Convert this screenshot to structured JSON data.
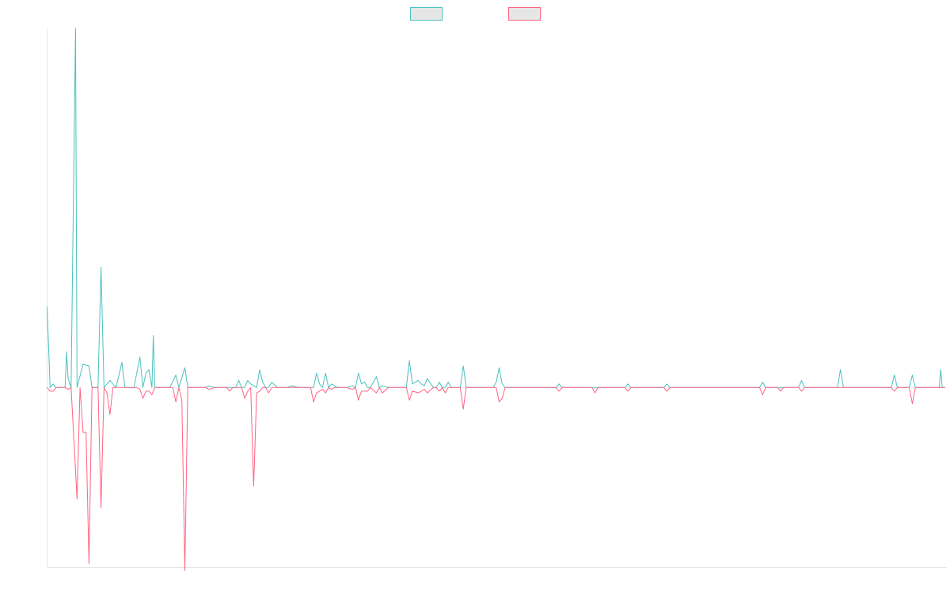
{
  "chart_data": {
    "type": "line",
    "title": "",
    "xlabel": "",
    "ylabel": "",
    "x_range": [
      0,
      300
    ],
    "ylim": [
      -100,
      200
    ],
    "grid": false,
    "legend_placement": "top-center",
    "series": [
      {
        "color": "#4bc0c0",
        "fill": "#e6e6e6",
        "points": [
          [
            0,
            45
          ],
          [
            1,
            0
          ],
          [
            2,
            2
          ],
          [
            3,
            0
          ],
          [
            5,
            0
          ],
          [
            6,
            0
          ],
          [
            6.5,
            20
          ],
          [
            7,
            5
          ],
          [
            8,
            0
          ],
          [
            9.5,
            200
          ],
          [
            10,
            0
          ],
          [
            12,
            13
          ],
          [
            14,
            12
          ],
          [
            15,
            0
          ],
          [
            17,
            0
          ],
          [
            18,
            67
          ],
          [
            19,
            0
          ],
          [
            20,
            2
          ],
          [
            21,
            4
          ],
          [
            23,
            0
          ],
          [
            25,
            14
          ],
          [
            26,
            0
          ],
          [
            29,
            0
          ],
          [
            31,
            17
          ],
          [
            32,
            0
          ],
          [
            33,
            8
          ],
          [
            34,
            10
          ],
          [
            35,
            0
          ],
          [
            35.5,
            29
          ],
          [
            36,
            0
          ],
          [
            38,
            0
          ],
          [
            39,
            0
          ],
          [
            41,
            0
          ],
          [
            43,
            7
          ],
          [
            44,
            0
          ],
          [
            46,
            11
          ],
          [
            47,
            0
          ],
          [
            53,
            0
          ],
          [
            54,
            1
          ],
          [
            56,
            0
          ],
          [
            60,
            0
          ],
          [
            63,
            0
          ],
          [
            64,
            4
          ],
          [
            65,
            0
          ],
          [
            66,
            0
          ],
          [
            67,
            4
          ],
          [
            68,
            2
          ],
          [
            70,
            0
          ],
          [
            71,
            10
          ],
          [
            72,
            3
          ],
          [
            73,
            0
          ],
          [
            74,
            0
          ],
          [
            75,
            3
          ],
          [
            77,
            0
          ],
          [
            80,
            0
          ],
          [
            82,
            1
          ],
          [
            84,
            0
          ],
          [
            88,
            0
          ],
          [
            89,
            0
          ],
          [
            90,
            8
          ],
          [
            91,
            2
          ],
          [
            92,
            0
          ],
          [
            93,
            8
          ],
          [
            94,
            0
          ],
          [
            95,
            2
          ],
          [
            96,
            1
          ],
          [
            97,
            0
          ],
          [
            98,
            0
          ],
          [
            100,
            0
          ],
          [
            102,
            1
          ],
          [
            103,
            0
          ],
          [
            104,
            8
          ],
          [
            105,
            2
          ],
          [
            106,
            3
          ],
          [
            107,
            0
          ],
          [
            108,
            0
          ],
          [
            110,
            6
          ],
          [
            111,
            0
          ],
          [
            112,
            1
          ],
          [
            114,
            0
          ],
          [
            120,
            0
          ],
          [
            121,
            15
          ],
          [
            122,
            2
          ],
          [
            124,
            4
          ],
          [
            125,
            2
          ],
          [
            126,
            1
          ],
          [
            127,
            5
          ],
          [
            129,
            0
          ],
          [
            130,
            0
          ],
          [
            131,
            3
          ],
          [
            132,
            0
          ],
          [
            133,
            0
          ],
          [
            134,
            3
          ],
          [
            135,
            0
          ],
          [
            137,
            0
          ],
          [
            138,
            0
          ],
          [
            139,
            12
          ],
          [
            140,
            0
          ],
          [
            141,
            0
          ],
          [
            143,
            0
          ],
          [
            146,
            0
          ],
          [
            148,
            0
          ],
          [
            149,
            0
          ],
          [
            150,
            3
          ],
          [
            151,
            11
          ],
          [
            152,
            2
          ],
          [
            153,
            0
          ],
          [
            160,
            0
          ],
          [
            161,
            0
          ],
          [
            168,
            0
          ],
          [
            170,
            0
          ],
          [
            171,
            2
          ],
          [
            172,
            0
          ],
          [
            175,
            0
          ],
          [
            176,
            0
          ],
          [
            178,
            0
          ],
          [
            186,
            0
          ],
          [
            187,
            0
          ],
          [
            193,
            0
          ],
          [
            194,
            2
          ],
          [
            195,
            0
          ],
          [
            200,
            0
          ],
          [
            206,
            0
          ],
          [
            207,
            2
          ],
          [
            208,
            0
          ],
          [
            212,
            0
          ],
          [
            213,
            0
          ],
          [
            216,
            0
          ],
          [
            217,
            0
          ],
          [
            218,
            0
          ],
          [
            220,
            0
          ],
          [
            222,
            0
          ],
          [
            223,
            0
          ],
          [
            225,
            0
          ],
          [
            232,
            0
          ],
          [
            234,
            0
          ],
          [
            238,
            0
          ],
          [
            239,
            3
          ],
          [
            240,
            0
          ],
          [
            244,
            0
          ],
          [
            246,
            0
          ],
          [
            248,
            0
          ],
          [
            251,
            0
          ],
          [
            252,
            4
          ],
          [
            253,
            0
          ],
          [
            258,
            0
          ],
          [
            260,
            0
          ],
          [
            264,
            0
          ],
          [
            265,
            10
          ],
          [
            266,
            0
          ],
          [
            282,
            0
          ],
          [
            283,
            7
          ],
          [
            284,
            0
          ],
          [
            288,
            0
          ],
          [
            289,
            7
          ],
          [
            290,
            0
          ],
          [
            294,
            0
          ],
          [
            296,
            0
          ],
          [
            297,
            0
          ],
          [
            298,
            0
          ],
          [
            298.5,
            10
          ],
          [
            299,
            0
          ],
          [
            300,
            0
          ]
        ]
      },
      {
        "color": "#ff6384",
        "fill": "#e6e6e6",
        "points": [
          [
            0,
            0
          ],
          [
            1,
            -2
          ],
          [
            2,
            -2
          ],
          [
            3,
            0
          ],
          [
            5,
            0
          ],
          [
            6,
            0
          ],
          [
            7,
            -1
          ],
          [
            8,
            0
          ],
          [
            10,
            -62
          ],
          [
            11,
            0
          ],
          [
            12,
            -25
          ],
          [
            13,
            -25
          ],
          [
            14,
            -98
          ],
          [
            15,
            0
          ],
          [
            17,
            0
          ],
          [
            18,
            -67
          ],
          [
            19,
            0
          ],
          [
            20,
            -3
          ],
          [
            21,
            -15
          ],
          [
            22,
            0
          ],
          [
            25,
            0
          ],
          [
            26,
            0
          ],
          [
            30,
            0
          ],
          [
            31,
            -1
          ],
          [
            32,
            -6
          ],
          [
            33,
            -2
          ],
          [
            34,
            -2
          ],
          [
            35,
            -4
          ],
          [
            36,
            0
          ],
          [
            38,
            0
          ],
          [
            39,
            0
          ],
          [
            42,
            0
          ],
          [
            43,
            -8
          ],
          [
            44,
            0
          ],
          [
            45,
            -7
          ],
          [
            46,
            -102
          ],
          [
            47,
            0
          ],
          [
            53,
            0
          ],
          [
            54,
            -1
          ],
          [
            56,
            0
          ],
          [
            60,
            0
          ],
          [
            61,
            -2
          ],
          [
            62,
            0
          ],
          [
            65,
            0
          ],
          [
            66,
            -6
          ],
          [
            67,
            -2
          ],
          [
            68,
            0
          ],
          [
            69,
            -55
          ],
          [
            70,
            -3
          ],
          [
            71,
            -2
          ],
          [
            72,
            0
          ],
          [
            73,
            0
          ],
          [
            74,
            -3
          ],
          [
            75,
            0
          ],
          [
            77,
            0
          ],
          [
            80,
            0
          ],
          [
            82,
            0
          ],
          [
            84,
            0
          ],
          [
            88,
            0
          ],
          [
            89,
            -8
          ],
          [
            90,
            -3
          ],
          [
            91,
            -2
          ],
          [
            92,
            -1
          ],
          [
            93,
            -3
          ],
          [
            94,
            0
          ],
          [
            95,
            -1
          ],
          [
            96,
            0
          ],
          [
            100,
            0
          ],
          [
            102,
            -1
          ],
          [
            103,
            0
          ],
          [
            104,
            -7
          ],
          [
            105,
            -2
          ],
          [
            106,
            -2
          ],
          [
            107,
            -2
          ],
          [
            108,
            0
          ],
          [
            110,
            -3
          ],
          [
            111,
            0
          ],
          [
            112,
            -3
          ],
          [
            114,
            0
          ],
          [
            120,
            0
          ],
          [
            121,
            -7
          ],
          [
            122,
            -2
          ],
          [
            124,
            -3
          ],
          [
            125,
            -2
          ],
          [
            126,
            -1
          ],
          [
            127,
            -3
          ],
          [
            129,
            0
          ],
          [
            130,
            0
          ],
          [
            131,
            -2
          ],
          [
            132,
            0
          ],
          [
            133,
            -3
          ],
          [
            134,
            0
          ],
          [
            135,
            0
          ],
          [
            137,
            0
          ],
          [
            138,
            0
          ],
          [
            139,
            -12
          ],
          [
            140,
            0
          ],
          [
            141,
            0
          ],
          [
            143,
            0
          ],
          [
            146,
            0
          ],
          [
            148,
            0
          ],
          [
            149,
            0
          ],
          [
            150,
            0
          ],
          [
            151,
            -8
          ],
          [
            152,
            -6
          ],
          [
            153,
            0
          ],
          [
            160,
            0
          ],
          [
            161,
            0
          ],
          [
            168,
            0
          ],
          [
            170,
            0
          ],
          [
            171,
            -2
          ],
          [
            172,
            0
          ],
          [
            175,
            0
          ],
          [
            176,
            0
          ],
          [
            178,
            0
          ],
          [
            182,
            0
          ],
          [
            183,
            -3
          ],
          [
            184,
            0
          ],
          [
            186,
            0
          ],
          [
            187,
            0
          ],
          [
            193,
            0
          ],
          [
            194,
            -2
          ],
          [
            195,
            0
          ],
          [
            200,
            0
          ],
          [
            206,
            0
          ],
          [
            207,
            -2
          ],
          [
            208,
            0
          ],
          [
            212,
            0
          ],
          [
            213,
            0
          ],
          [
            216,
            0
          ],
          [
            217,
            0
          ],
          [
            218,
            0
          ],
          [
            220,
            0
          ],
          [
            222,
            0
          ],
          [
            223,
            0
          ],
          [
            225,
            0
          ],
          [
            232,
            0
          ],
          [
            234,
            0
          ],
          [
            238,
            0
          ],
          [
            239,
            -4
          ],
          [
            240,
            0
          ],
          [
            244,
            0
          ],
          [
            245,
            -2
          ],
          [
            246,
            0
          ],
          [
            248,
            0
          ],
          [
            251,
            0
          ],
          [
            252,
            -2
          ],
          [
            253,
            0
          ],
          [
            258,
            0
          ],
          [
            260,
            0
          ],
          [
            264,
            0
          ],
          [
            265,
            0
          ],
          [
            266,
            0
          ],
          [
            282,
            0
          ],
          [
            283,
            -2
          ],
          [
            284,
            0
          ],
          [
            288,
            0
          ],
          [
            289,
            -9
          ],
          [
            290,
            0
          ],
          [
            294,
            0
          ],
          [
            296,
            0
          ],
          [
            297,
            0
          ],
          [
            298,
            0
          ],
          [
            299,
            0
          ],
          [
            300,
            0
          ]
        ]
      }
    ]
  }
}
